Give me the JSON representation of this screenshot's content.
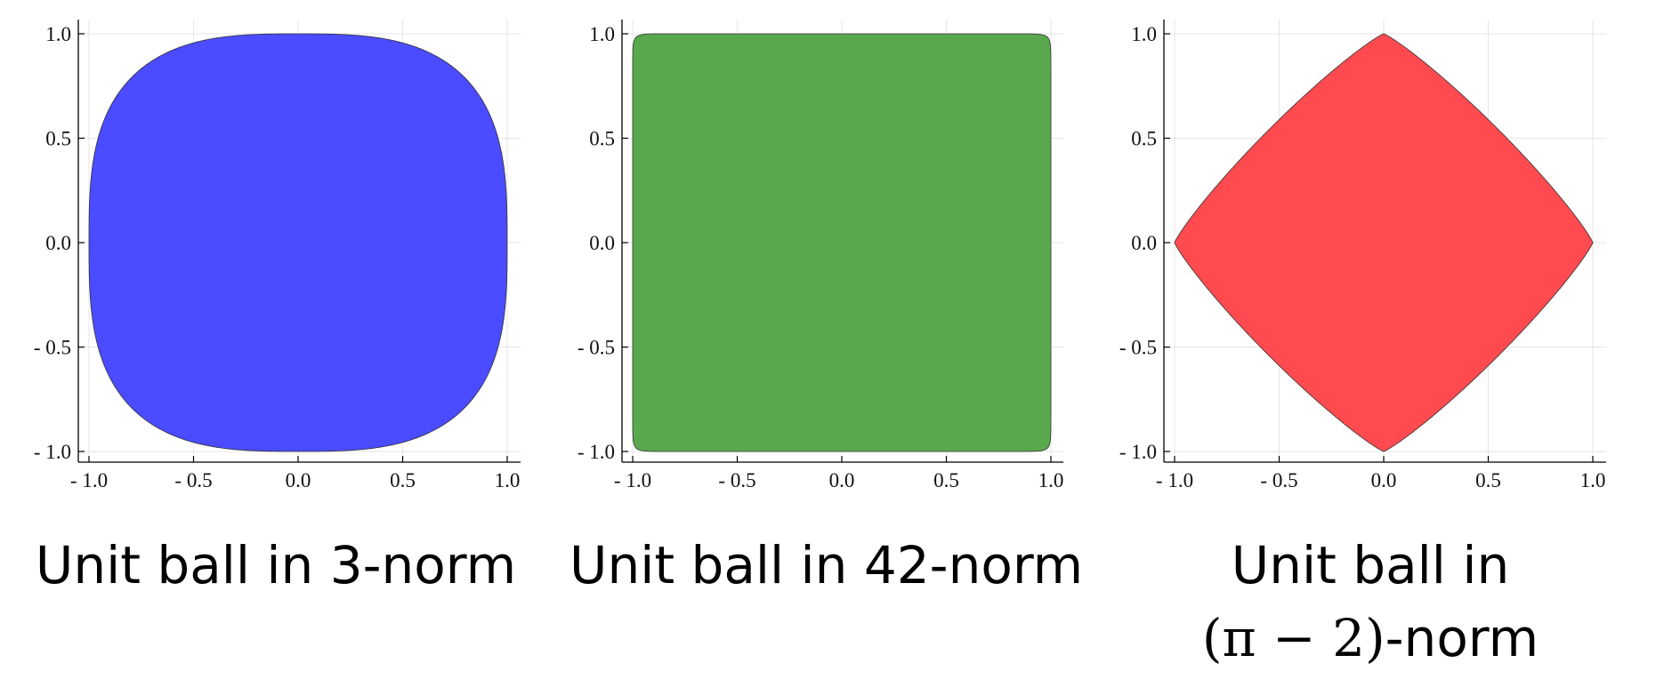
{
  "chart_data": [
    {
      "type": "area",
      "norm_p": 3,
      "color": "#4b4bff",
      "xlim": [
        -1.05,
        1.05
      ],
      "ylim": [
        -1.05,
        1.05
      ],
      "xticks": [
        "- 1.0",
        "- 0.5",
        "0.0",
        "0.5",
        "1.0"
      ],
      "yticks": [
        "1.0",
        "0.5",
        "0.0",
        "- 0.5",
        "- 1.0"
      ],
      "grid": true,
      "caption": "Unit ball in 3-norm"
    },
    {
      "type": "area",
      "norm_p": 42,
      "color": "#5aa84e",
      "xlim": [
        -1.05,
        1.05
      ],
      "ylim": [
        -1.05,
        1.05
      ],
      "xticks": [
        "- 1.0",
        "- 0.5",
        "0.0",
        "0.5",
        "1.0"
      ],
      "yticks": [
        "1.0",
        "0.5",
        "0.0",
        "- 0.5",
        "- 1.0"
      ],
      "grid": true,
      "caption": "Unit ball in 42-norm"
    },
    {
      "type": "area",
      "norm_p": 1.1416,
      "color": "#ff4b4f",
      "xlim": [
        -1.05,
        1.05
      ],
      "ylim": [
        -1.05,
        1.05
      ],
      "xticks": [
        "- 1.0",
        "- 0.5",
        "0.0",
        "0.5",
        "1.0"
      ],
      "yticks": [
        "1.0",
        "0.5",
        "0.0",
        "- 0.5",
        "- 1.0"
      ],
      "grid": true,
      "caption_line1": "Unit ball in",
      "caption_line2_math": "(π − 2)",
      "caption_line2_text": "-norm"
    }
  ]
}
